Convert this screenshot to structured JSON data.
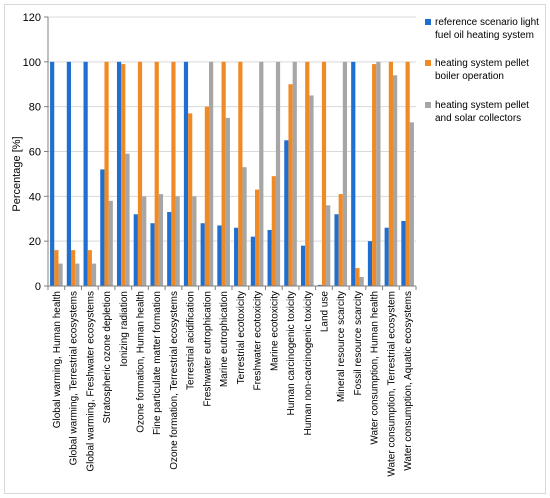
{
  "chart_data": {
    "type": "bar",
    "ylabel": "Percentage [%]",
    "ylim": [
      0,
      120
    ],
    "yticks": [
      0,
      20,
      40,
      60,
      80,
      100,
      120
    ],
    "grid": "horizontal",
    "legend_position": "right",
    "categories": [
      "Global warming, Human health",
      "Global warming, Terrestrial ecosystems",
      "Global warming, Freshwater ecosystems",
      "Stratospheric ozone depletion",
      "Ionizing radiation",
      "Ozone formation, Human health",
      "Fine particulate matter formation",
      "Ozone formation, Terrestrial ecosystems",
      "Terrestrial acidification",
      "Freshwater eutrophication",
      "Marine eutrophication",
      "Terrestrial ecotoxicity",
      "Freshwater ecotoxicity",
      "Marine ecotoxicity",
      "Human carcinogenic toxicity",
      "Human non-carcinogenic toxicity",
      "Land use",
      "Mineral resource scarcity",
      "Fossil resource scarcity",
      "Water consumption, Human health",
      "Water consumption, Terrestrial ecosystem",
      "Water consumption, Aquatic ecosystems"
    ],
    "series": [
      {
        "name": "reference scenario light fuel oil heating system",
        "legend_lines": [
          "reference scenario light",
          "fuel oil heating system"
        ],
        "color": "#1f6fd0",
        "values": [
          100,
          100,
          100,
          52,
          100,
          32,
          28,
          33,
          100,
          28,
          27,
          26,
          22,
          25,
          65,
          18,
          0.5,
          32,
          100,
          20,
          26,
          29
        ]
      },
      {
        "name": "heating system pellet boiler operation",
        "legend_lines": [
          "heating system pellet",
          "boiler operation"
        ],
        "color": "#f08a24",
        "values": [
          16,
          16,
          16,
          100,
          99,
          100,
          100,
          100,
          77,
          80,
          100,
          100,
          43,
          49,
          90,
          100,
          100,
          41,
          8,
          99,
          100,
          100
        ]
      },
      {
        "name": "heating system pellet and solar collectors",
        "legend_lines": [
          "heating system pellet",
          "and solar collectors"
        ],
        "color": "#a6a6a6",
        "values": [
          10,
          10,
          10,
          38,
          59,
          40,
          41,
          40,
          40,
          100,
          75,
          53,
          100,
          100,
          100,
          85,
          36,
          100,
          4,
          100,
          94,
          73
        ]
      }
    ]
  }
}
